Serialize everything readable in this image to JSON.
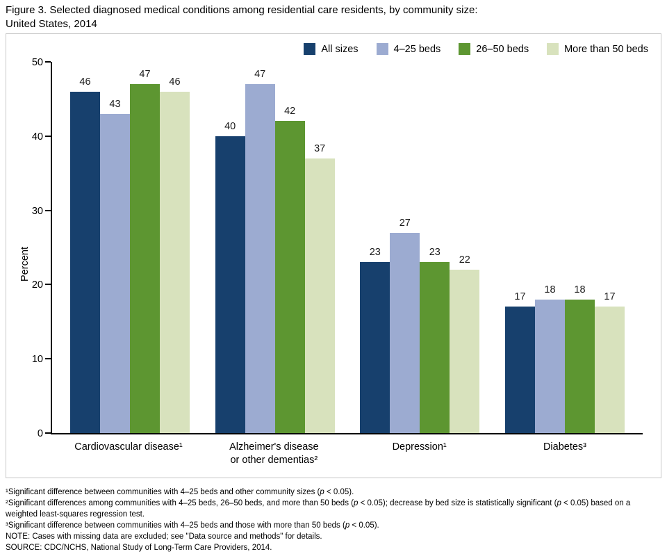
{
  "header": {
    "title_line1": "Figure 3. Selected diagnosed medical conditions among residential care residents, by community size:",
    "title_line2": "United States, 2014"
  },
  "chart_data": {
    "type": "bar",
    "title": "Selected diagnosed medical conditions among residential care residents, by community size: United States, 2014",
    "ylabel": "Percent",
    "xlabel": "",
    "ylim": [
      0,
      50
    ],
    "yticks": [
      0,
      10,
      20,
      30,
      40,
      50
    ],
    "grid": false,
    "legend_position": "top",
    "categories": [
      "Cardiovascular disease¹",
      "Alzheimer's disease or other dementias²",
      "Depression¹",
      "Diabetes³"
    ],
    "category_lines": [
      [
        "Cardiovascular disease¹"
      ],
      [
        "Alzheimer's disease",
        "or other dementias²"
      ],
      [
        "Depression¹"
      ],
      [
        "Diabetes³"
      ]
    ],
    "series": [
      {
        "name": "All sizes",
        "color": "#17406d",
        "values": [
          46,
          40,
          23,
          17
        ]
      },
      {
        "name": "4–25 beds",
        "color": "#9cabd1",
        "values": [
          43,
          47,
          27,
          18
        ]
      },
      {
        "name": "26–50 beds",
        "color": "#5d9631",
        "values": [
          47,
          42,
          23,
          18
        ]
      },
      {
        "name": "More than 50 beds",
        "color": "#d8e2bd",
        "values": [
          46,
          37,
          22,
          17
        ]
      }
    ]
  },
  "footnotes": [
    "¹Significant difference between communities with 4–25 beds and other community sizes (p < 0.05).",
    "²Significant differences among communities with 4–25 beds, 26–50 beds, and more than 50 beds (p < 0.05); decrease by bed size is statistically significant (p < 0.05) based on a weighted least-squares regression test.",
    "³Significant difference between communities with 4–25 beds and those with more than 50 beds (p < 0.05).",
    "NOTE: Cases with missing data are excluded; see \"Data source and methods\" for details.",
    "SOURCE: CDC/NCHS, National Study of Long-Term Care Providers, 2014."
  ]
}
